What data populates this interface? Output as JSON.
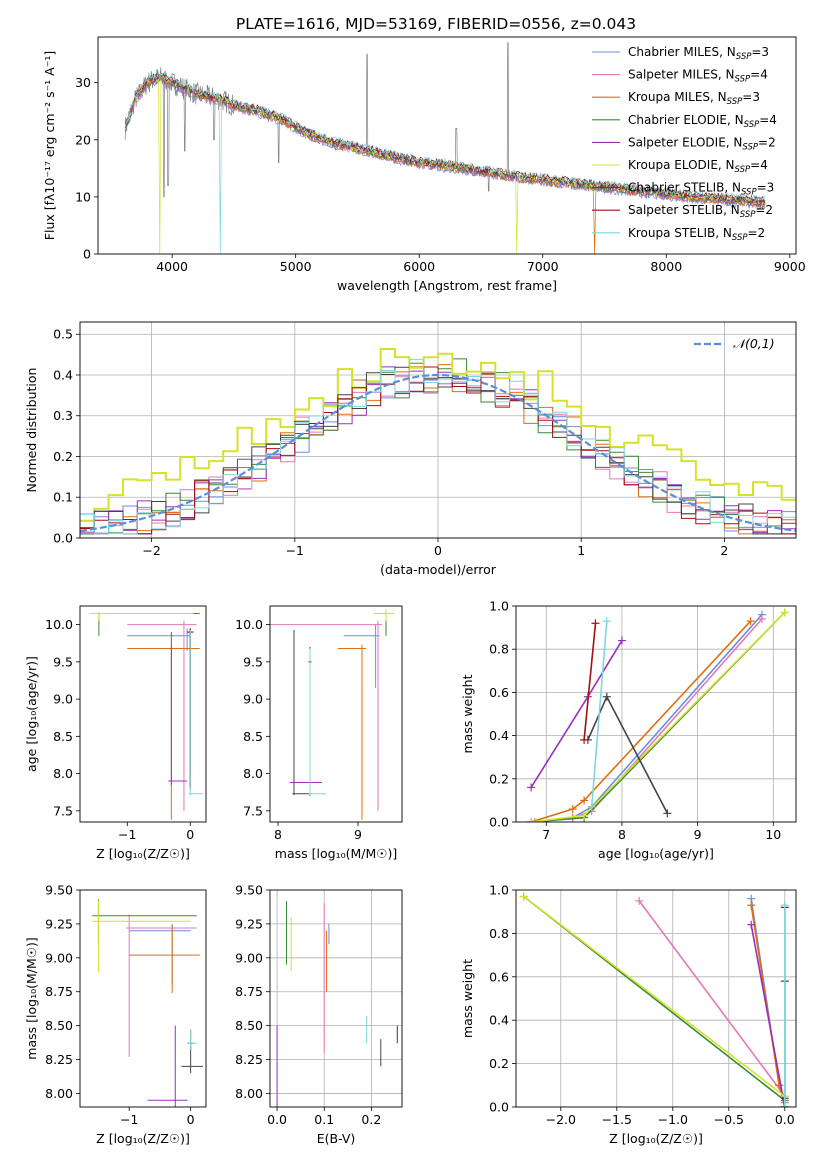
{
  "figure_title": "PLATE=1616, MJD=53169, FIBERID=0556, z=0.043",
  "colors": {
    "Chabrier MILES": "#6b8ee0",
    "Salpeter MILES": "#e07ab8",
    "Kroupa MILES": "#e06e10",
    "Chabrier ELODIE": "#3a8a3a",
    "Salpeter ELODIE": "#9b30b8",
    "Kroupa ELODIE": "#d4e22a",
    "Chabrier STELIB": "#444444",
    "Salpeter STELIB": "#a01010",
    "Kroupa STELIB": "#7fd6e0",
    "data": "#808080",
    "normal": "#5b8fd9",
    "grid": "#b0b0b0"
  },
  "chart_data": [
    {
      "id": "spectrum",
      "type": "line",
      "title": "PLATE=1616, MJD=53169, FIBERID=0556, z=0.043",
      "xlabel": "wavelength [Angstrom, rest frame]",
      "ylabel": "Flux [fλ10⁻¹⁷ erg cm⁻² s⁻¹ A⁻¹]",
      "xlim": [
        3400,
        9050
      ],
      "ylim": [
        0,
        38
      ],
      "xticks": [
        4000,
        5000,
        6000,
        7000,
        8000,
        9000
      ],
      "yticks": [
        0,
        10,
        20,
        30
      ],
      "grid": false,
      "legend_position": "top-right",
      "legend": [
        "Chabrier MILES, N_SSP=3",
        "Salpeter MILES, N_SSP=4",
        "Kroupa MILES, N_SSP=3",
        "Chabrier ELODIE, N_SSP=4",
        "Salpeter ELODIE, N_SSP=2",
        "Kroupa ELODIE, N_SSP=4",
        "Chabrier STELIB, N_SSP=3",
        "Salpeter STELIB, N_SSP=2",
        "Kroupa STELIB, N_SSP=2"
      ],
      "legend_display": [
        [
          "Chabrier MILES, N",
          "SSP",
          "=3"
        ],
        [
          "Salpeter MILES, N",
          "SSP",
          "=4"
        ],
        [
          "Kroupa MILES, N",
          "SSP",
          "=3"
        ],
        [
          "Chabrier ELODIE, N",
          "SSP",
          "=4"
        ],
        [
          "Salpeter ELODIE, N",
          "SSP",
          "=2"
        ],
        [
          "Kroupa ELODIE, N",
          "SSP",
          "=4"
        ],
        [
          "Chabrier STELIB, N",
          "SSP",
          "=3"
        ],
        [
          "Salpeter STELIB, N",
          "SSP",
          "=2"
        ],
        [
          "Kroupa STELIB, N",
          "SSP",
          "=2"
        ]
      ],
      "continuum_model": {
        "x": [
          3620,
          3700,
          3800,
          3900,
          4000,
          4100,
          4200,
          4300,
          4400,
          4500,
          4700,
          4900,
          5100,
          5300,
          5500,
          5800,
          6000,
          6200,
          6500,
          6800,
          7000,
          7400,
          7800,
          8200,
          8800
        ],
        "y": [
          22,
          27,
          30,
          31,
          30,
          29,
          28,
          27.5,
          27,
          26,
          25,
          23.5,
          21,
          19.5,
          18.5,
          17,
          16,
          15.5,
          14.5,
          13.5,
          13,
          12,
          11,
          10,
          9
        ]
      },
      "data_features": [
        {
          "x": 3933,
          "y": 10
        },
        {
          "x": 3968,
          "y": 12
        },
        {
          "x": 4102,
          "y": 18
        },
        {
          "x": 4340,
          "y": 20
        },
        {
          "x": 4861,
          "y": 16
        },
        {
          "x": 5577,
          "y": 35
        },
        {
          "x": 6300,
          "y": 22
        },
        {
          "x": 6563,
          "y": 11
        },
        {
          "x": 6718,
          "y": 37
        }
      ],
      "model_spikes": [
        {
          "series": "Kroupa ELODIE",
          "x": 3900,
          "y": 0
        },
        {
          "series": "Kroupa STELIB",
          "x": 4390,
          "y": 0
        },
        {
          "series": "Kroupa ELODIE",
          "x": 6790,
          "y": 0
        },
        {
          "series": "Kroupa MILES",
          "x": 7420,
          "y": 0
        }
      ]
    },
    {
      "id": "residuals",
      "type": "line",
      "xlabel": "(data-model)/error",
      "ylabel": "Normed distribution",
      "xlim": [
        -2.5,
        2.5
      ],
      "ylim": [
        0,
        0.53
      ],
      "xticks": [
        -2,
        -1,
        0,
        1,
        2
      ],
      "yticks": [
        0.0,
        0.1,
        0.2,
        0.3,
        0.4,
        0.5
      ],
      "grid": true,
      "legend_position": "top-right",
      "legend": [
        "𝒩(0,1)"
      ],
      "bin_width": 0.1,
      "sigma": 1,
      "peak": 0.4
    },
    {
      "id": "age-vs-Z",
      "type": "scatter",
      "xlabel": "Z [log₁₀(Z/Z☉)]",
      "ylabel": "age  [log₁₀(age/yr)]",
      "xlim": [
        -1.75,
        0.25
      ],
      "ylim": [
        7.35,
        10.25
      ],
      "xticks": [
        -1,
        0
      ],
      "yticks": [
        7.5,
        8.0,
        8.5,
        9.0,
        9.5,
        10.0
      ],
      "grid": false,
      "points": [
        {
          "series": "Chabrier MILES",
          "x": -0.05,
          "y": 9.85,
          "xerr": [
            0.95,
            0.05
          ],
          "yerr": [
            0.2,
            0.1
          ]
        },
        {
          "series": "Salpeter MILES",
          "x": -0.1,
          "y": 10.0,
          "xerr": [
            0.9,
            0.2
          ],
          "yerr": [
            2.5,
            0.05
          ]
        },
        {
          "series": "Kroupa MILES",
          "x": -0.3,
          "y": 9.68,
          "xerr": [
            0.7,
            0.45
          ],
          "yerr": [
            2.3,
            0.02
          ]
        },
        {
          "series": "Chabrier ELODIE",
          "x": -1.45,
          "y": 10.15,
          "xerr": [
            0.05,
            1.6
          ],
          "yerr": [
            0.3,
            0.02
          ]
        },
        {
          "series": "Salpeter ELODIE",
          "x": -0.3,
          "y": 7.9,
          "xerr": [
            0.05,
            0.25
          ],
          "yerr": [
            0.05,
            2.0
          ]
        },
        {
          "series": "Kroupa ELODIE",
          "x": -1.45,
          "y": 10.15,
          "xerr": [
            0.15,
            1.5
          ],
          "yerr": [
            0.1,
            0.02
          ]
        },
        {
          "series": "Chabrier STELIB",
          "x": 0.0,
          "y": 9.9,
          "xerr": [
            0.05,
            0.05
          ],
          "yerr": [
            2.1,
            0.05
          ]
        },
        {
          "series": "Salpeter STELIB",
          "x": 0.0,
          "y": 9.9,
          "xerr": [
            0.05,
            0.05
          ],
          "yerr": [
            2.1,
            0.05
          ]
        },
        {
          "series": "Kroupa STELIB",
          "x": 0.0,
          "y": 7.73,
          "xerr": [
            0.02,
            0.2
          ],
          "yerr": [
            0.02,
            2.2
          ]
        }
      ]
    },
    {
      "id": "age-vs-mass",
      "type": "scatter",
      "xlabel": "mass [log₁₀(M/M☉)]",
      "ylabel": "",
      "xlim": [
        7.9,
        9.55
      ],
      "ylim": [
        7.35,
        10.25
      ],
      "xticks": [
        8,
        9
      ],
      "yticks": [
        7.5,
        8.0,
        8.5,
        9.0,
        9.5,
        10.0
      ],
      "grid": false,
      "points": [
        {
          "series": "Chabrier MILES",
          "x": 9.22,
          "y": 9.85,
          "xerr": [
            0.4,
            0.05
          ],
          "yerr": [
            0.7,
            0.15
          ]
        },
        {
          "series": "Salpeter MILES",
          "x": 9.25,
          "y": 10.0,
          "xerr": [
            1.35,
            0.05
          ],
          "yerr": [
            2.5,
            0.05
          ]
        },
        {
          "series": "Kroupa MILES",
          "x": 9.05,
          "y": 9.68,
          "xerr": [
            0.3,
            0.05
          ],
          "yerr": [
            2.3,
            0.05
          ]
        },
        {
          "series": "Chabrier ELODIE",
          "x": 9.35,
          "y": 10.15,
          "xerr": [
            0.12,
            0.05
          ],
          "yerr": [
            0.3,
            0.05
          ]
        },
        {
          "series": "Salpeter ELODIE",
          "x": 8.2,
          "y": 7.88,
          "xerr": [
            0.05,
            0.35
          ],
          "yerr": [
            0.05,
            2.0
          ]
        },
        {
          "series": "Kroupa ELODIE",
          "x": 9.35,
          "y": 10.15,
          "xerr": [
            0.15,
            0.1
          ],
          "yerr": [
            0.1,
            0.05
          ]
        },
        {
          "series": "Chabrier STELIB",
          "x": 8.2,
          "y": 7.73,
          "xerr": [
            0.02,
            0.2
          ],
          "yerr": [
            0.02,
            2.2
          ]
        },
        {
          "series": "Salpeter STELIB",
          "x": 8.4,
          "y": 9.5,
          "xerr": [
            0.02,
            0.02
          ],
          "yerr": [
            1.8,
            0.2
          ]
        },
        {
          "series": "Kroupa STELIB",
          "x": 8.4,
          "y": 7.73,
          "xerr": [
            0.02,
            0.2
          ],
          "yerr": [
            0.02,
            1.95
          ]
        }
      ]
    },
    {
      "id": "cumulative-age",
      "type": "line",
      "xlabel": "age  [log₁₀(age/yr)]",
      "ylabel": "mass weight",
      "xlim": [
        6.6,
        10.3
      ],
      "ylim": [
        0.0,
        1.0
      ],
      "xticks": [
        7,
        8,
        9,
        10
      ],
      "yticks": [
        0.0,
        0.2,
        0.4,
        0.6,
        0.8,
        1.0
      ],
      "grid": true,
      "series": [
        {
          "name": "Chabrier MILES",
          "x": [
            6.8,
            7.35,
            7.6,
            9.85
          ],
          "y": [
            0.0,
            0.02,
            0.07,
            0.96
          ]
        },
        {
          "name": "Salpeter MILES",
          "x": [
            6.85,
            7.35,
            7.6,
            9.85
          ],
          "y": [
            0.0,
            0.02,
            0.05,
            0.94
          ]
        },
        {
          "name": "Kroupa MILES",
          "x": [
            6.8,
            7.35,
            7.5,
            9.7
          ],
          "y": [
            0.0,
            0.06,
            0.1,
            0.93
          ]
        },
        {
          "name": "Chabrier ELODIE",
          "x": [
            6.8,
            7.5,
            10.15
          ],
          "y": [
            0.0,
            0.02,
            0.97
          ]
        },
        {
          "name": "Salpeter ELODIE",
          "x": [
            6.8,
            7.55,
            8.0
          ],
          "y": [
            0.16,
            0.58,
            0.84
          ]
        },
        {
          "name": "Kroupa ELODIE",
          "x": [
            6.8,
            7.5,
            10.15
          ],
          "y": [
            0.0,
            0.03,
            0.97
          ]
        },
        {
          "name": "Chabrier STELIB",
          "x": [
            7.55,
            7.8,
            8.6
          ],
          "y": [
            0.38,
            0.58,
            0.04
          ]
        },
        {
          "name": "Salpeter STELIB",
          "x": [
            7.5,
            7.65
          ],
          "y": [
            0.38,
            0.92
          ]
        },
        {
          "name": "Kroupa STELIB",
          "x": [
            7.6,
            7.8
          ],
          "y": [
            0.07,
            0.93
          ]
        }
      ]
    },
    {
      "id": "mass-vs-Z",
      "type": "scatter",
      "xlabel": "Z [log₁₀(Z/Z☉)]",
      "ylabel": "mass [log₁₀(M/M☉)]",
      "xlim": [
        -1.8,
        0.25
      ],
      "ylim": [
        7.9,
        9.5
      ],
      "xticks": [
        -1,
        0
      ],
      "yticks": [
        8.0,
        8.25,
        8.5,
        8.75,
        9.0,
        9.25,
        9.5
      ],
      "grid": false,
      "points": [
        {
          "series": "Chabrier MILES",
          "x": -0.3,
          "y": 9.2,
          "xerr": [
            0.7,
            0.3
          ],
          "yerr": [
            0.4,
            0.05
          ]
        },
        {
          "series": "Salpeter MILES",
          "x": -1.0,
          "y": 9.22,
          "xerr": [
            0.05,
            1.1
          ],
          "yerr": [
            0.95,
            0.1
          ]
        },
        {
          "series": "Kroupa MILES",
          "x": -0.3,
          "y": 9.02,
          "xerr": [
            0.7,
            0.45
          ],
          "yerr": [
            0.28,
            0.22
          ]
        },
        {
          "series": "Chabrier ELODIE",
          "x": -1.5,
          "y": 9.31,
          "xerr": [
            0.1,
            1.6
          ],
          "yerr": [
            0.2,
            0.12
          ]
        },
        {
          "series": "Salpeter ELODIE",
          "x": -0.25,
          "y": 7.95,
          "xerr": [
            0.45,
            0.2
          ],
          "yerr": [
            0.05,
            0.55
          ]
        },
        {
          "series": "Kroupa ELODIE",
          "x": -1.5,
          "y": 9.27,
          "xerr": [
            0.1,
            1.5
          ],
          "yerr": [
            0.38,
            0.15
          ]
        },
        {
          "series": "Chabrier STELIB",
          "x": 0.0,
          "y": 8.2,
          "xerr": [
            0.15,
            0.2
          ],
          "yerr": [
            0.05,
            0.15
          ]
        },
        {
          "series": "Salpeter STELIB",
          "x": 0.0,
          "y": 8.37,
          "xerr": [
            0.05,
            0.05
          ],
          "yerr": [
            0.05,
            0.1
          ]
        },
        {
          "series": "Kroupa STELIB",
          "x": 0.0,
          "y": 8.37,
          "xerr": [
            0.05,
            0.1
          ],
          "yerr": [
            0.05,
            0.1
          ]
        }
      ]
    },
    {
      "id": "mass-vs-EBV",
      "type": "scatter",
      "xlabel": "E(B-V)",
      "ylabel": "",
      "xlim": [
        -0.015,
        0.265
      ],
      "ylim": [
        7.9,
        9.5
      ],
      "xticks": [
        0.0,
        0.1,
        0.2
      ],
      "yticks": [
        8.0,
        8.25,
        8.5,
        8.75,
        9.0,
        9.25,
        9.5
      ],
      "grid": true,
      "points": [
        {
          "series": "Chabrier MILES",
          "x": 0.11,
          "y": 9.2,
          "xerr": [
            0,
            0
          ],
          "yerr": [
            0.1,
            0.05
          ]
        },
        {
          "series": "Salpeter MILES",
          "x": 0.1,
          "y": 9.2,
          "xerr": [
            0,
            0
          ],
          "yerr": [
            0.9,
            0.2
          ]
        },
        {
          "series": "Kroupa MILES",
          "x": 0.105,
          "y": 9.0,
          "xerr": [
            0,
            0
          ],
          "yerr": [
            0.25,
            0.2
          ]
        },
        {
          "series": "Chabrier ELODIE",
          "x": 0.02,
          "y": 9.3,
          "xerr": [
            0,
            0
          ],
          "yerr": [
            0.35,
            0.12
          ]
        },
        {
          "series": "Salpeter ELODIE",
          "x": 0.0,
          "y": 8.0,
          "xerr": [
            0,
            0
          ],
          "yerr": [
            0.1,
            0.5
          ]
        },
        {
          "series": "Kroupa ELODIE",
          "x": 0.03,
          "y": 9.1,
          "xerr": [
            0,
            0
          ],
          "yerr": [
            0.2,
            0.2
          ]
        },
        {
          "series": "Chabrier STELIB",
          "x": 0.22,
          "y": 8.3,
          "xerr": [
            0,
            0
          ],
          "yerr": [
            0.1,
            0.1
          ]
        },
        {
          "series": "Salpeter STELIB",
          "x": 0.255,
          "y": 8.45,
          "xerr": [
            0,
            0
          ],
          "yerr": [
            0.08,
            0.05
          ]
        },
        {
          "series": "Kroupa STELIB",
          "x": 0.19,
          "y": 8.47,
          "xerr": [
            0,
            0
          ],
          "yerr": [
            0.1,
            0.1
          ]
        }
      ]
    },
    {
      "id": "cumulative-Z",
      "type": "line",
      "xlabel": "Z [log₁₀(Z/Z☉)]",
      "ylabel": "mass weight",
      "xlim": [
        -2.4,
        0.1
      ],
      "ylim": [
        0.0,
        1.0
      ],
      "xticks": [
        -2.0,
        -1.5,
        -1.0,
        -0.5,
        0.0
      ],
      "yticks": [
        0.0,
        0.2,
        0.4,
        0.6,
        0.8,
        1.0
      ],
      "grid": true,
      "series": [
        {
          "name": "Chabrier MILES",
          "x": [
            -0.3,
            -0.05,
            0.0
          ],
          "y": [
            0.96,
            0.1,
            0.0
          ]
        },
        {
          "name": "Salpeter MILES",
          "x": [
            -1.3,
            0.0,
            0.0
          ],
          "y": [
            0.95,
            0.05,
            0.02
          ]
        },
        {
          "name": "Kroupa MILES",
          "x": [
            -0.3,
            -0.05,
            0.0
          ],
          "y": [
            0.93,
            0.1,
            0.0
          ]
        },
        {
          "name": "Chabrier ELODIE",
          "x": [
            -2.33,
            0.0
          ],
          "y": [
            0.97,
            0.03
          ]
        },
        {
          "name": "Salpeter ELODIE",
          "x": [
            -0.3,
            0.0
          ],
          "y": [
            0.84,
            0.0
          ]
        },
        {
          "name": "Kroupa ELODIE",
          "x": [
            -2.33,
            0.0
          ],
          "y": [
            0.97,
            0.05
          ]
        },
        {
          "name": "Chabrier STELIB",
          "x": [
            0.0,
            0.0
          ],
          "y": [
            0.58,
            0.04
          ]
        },
        {
          "name": "Salpeter STELIB",
          "x": [
            0.0,
            0.0
          ],
          "y": [
            0.92,
            0.0
          ]
        },
        {
          "name": "Kroupa STELIB",
          "x": [
            0.0,
            0.0
          ],
          "y": [
            0.93,
            0.0
          ]
        }
      ]
    }
  ]
}
